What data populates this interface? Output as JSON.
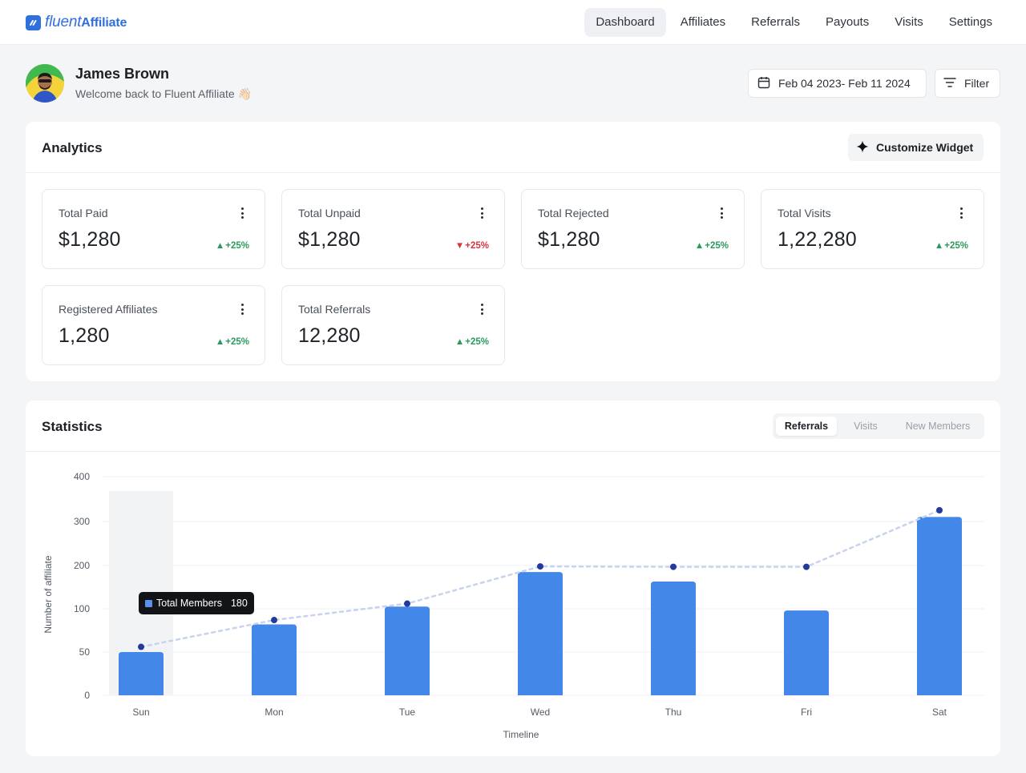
{
  "brand": {
    "name_part1": "fluent",
    "name_part2": "Affiliate",
    "color": "#2f6fde"
  },
  "nav": {
    "items": [
      {
        "label": "Dashboard",
        "active": true
      },
      {
        "label": "Affiliates",
        "active": false
      },
      {
        "label": "Referrals",
        "active": false
      },
      {
        "label": "Payouts",
        "active": false
      },
      {
        "label": "Visits",
        "active": false
      },
      {
        "label": "Settings",
        "active": false
      }
    ]
  },
  "user": {
    "name": "James Brown",
    "welcome": "Welcome back to Fluent Affiliate 👋🏻"
  },
  "toolbar": {
    "date_range": "Feb 04 2023- Feb 11 2024",
    "filter_label": "Filter",
    "date_icon": "calendar-icon",
    "filter_icon": "filter-lines-icon"
  },
  "analytics": {
    "title": "Analytics",
    "customize_label": "Customize Widget",
    "cards": [
      {
        "label": "Total Paid",
        "value": "$1,280",
        "change": "+25%",
        "direction": "up"
      },
      {
        "label": "Total Unpaid",
        "value": "$1,280",
        "change": "+25%",
        "direction": "down"
      },
      {
        "label": "Total Rejected",
        "value": "$1,280",
        "change": "+25%",
        "direction": "up"
      },
      {
        "label": "Total Visits",
        "value": "1,22,280",
        "change": "+25%",
        "direction": "up"
      },
      {
        "label": "Registered Affiliates",
        "value": "1,280",
        "change": "+25%",
        "direction": "up"
      },
      {
        "label": "Total Referrals",
        "value": "12,280",
        "change": "+25%",
        "direction": "up"
      }
    ]
  },
  "statistics": {
    "title": "Statistics",
    "tabs": [
      {
        "label": "Referrals",
        "active": true
      },
      {
        "label": "Visits",
        "active": false
      },
      {
        "label": "New Members",
        "active": false
      }
    ],
    "tooltip": {
      "label": "Total Members",
      "value": "180"
    }
  },
  "colors": {
    "bar": "#4388e8",
    "line": "#c9d2ee",
    "point": "#223a9c",
    "up": "#2b9a5c",
    "down": "#d6363e"
  },
  "chart_data": {
    "type": "bar",
    "categories": [
      "Sun",
      "Mon",
      "Tue",
      "Wed",
      "Thu",
      "Fri",
      "Sat"
    ],
    "series": [
      {
        "type": "bar",
        "values": [
          50,
          82,
          105,
          185,
          163,
          98,
          310
        ]
      },
      {
        "type": "line",
        "values": [
          56,
          87,
          112,
          198,
          197,
          197,
          325
        ]
      }
    ],
    "y_ticks": [
      0,
      50,
      100,
      200,
      300,
      400
    ],
    "ylabel": "Number of affiliate",
    "xlabel": "Timeline",
    "highlighted_category": "Sun",
    "grid": true
  }
}
